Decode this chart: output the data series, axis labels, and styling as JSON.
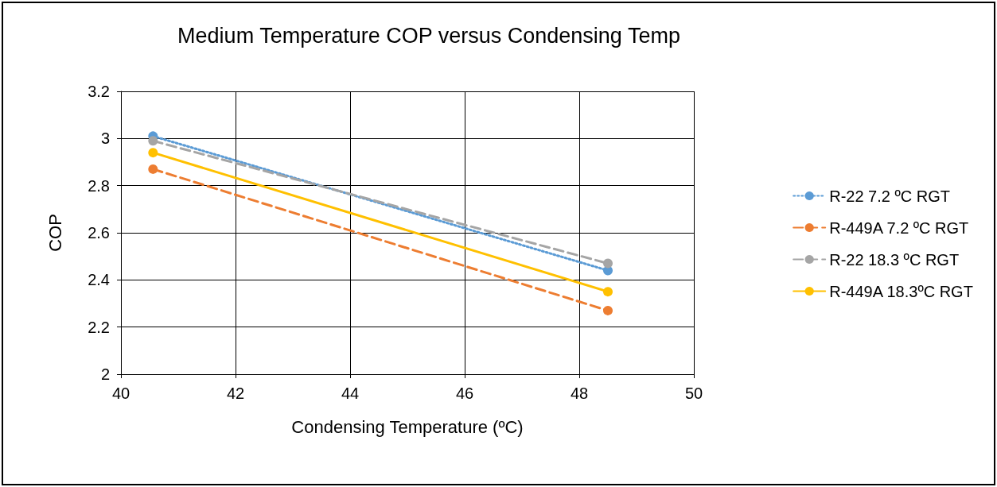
{
  "chart_data": {
    "type": "line",
    "title": "Medium Temperature COP versus Condensing Temp",
    "xlabel": "Condensing Temperature (ºC)",
    "ylabel": "COP",
    "xlim": [
      40,
      50
    ],
    "xticks": [
      40,
      42,
      44,
      46,
      48,
      50
    ],
    "ylim": [
      2,
      3.2
    ],
    "yticks": [
      2,
      2.2,
      2.4,
      2.6,
      2.8,
      3,
      3.2
    ],
    "grid": true,
    "legend": "right",
    "marker": "circle",
    "x": [
      40.56,
      48.5
    ],
    "series": [
      {
        "name": "R-22 7.2 ºC RGT",
        "color": "#5b9bd5",
        "line_style": "dotted",
        "values": [
          3.01,
          2.44
        ]
      },
      {
        "name": "R-449A 7.2 ºC RGT",
        "color": "#ed7d31",
        "line_style": "dashed",
        "values": [
          2.87,
          2.27
        ]
      },
      {
        "name": "R-22 18.3 ºC RGT",
        "color": "#a5a5a5",
        "line_style": "dashed",
        "values": [
          2.99,
          2.47
        ]
      },
      {
        "name": "R-449A 18.3ºC RGT",
        "color": "#ffc000",
        "line_style": "solid",
        "values": [
          2.94,
          2.35
        ]
      }
    ]
  }
}
